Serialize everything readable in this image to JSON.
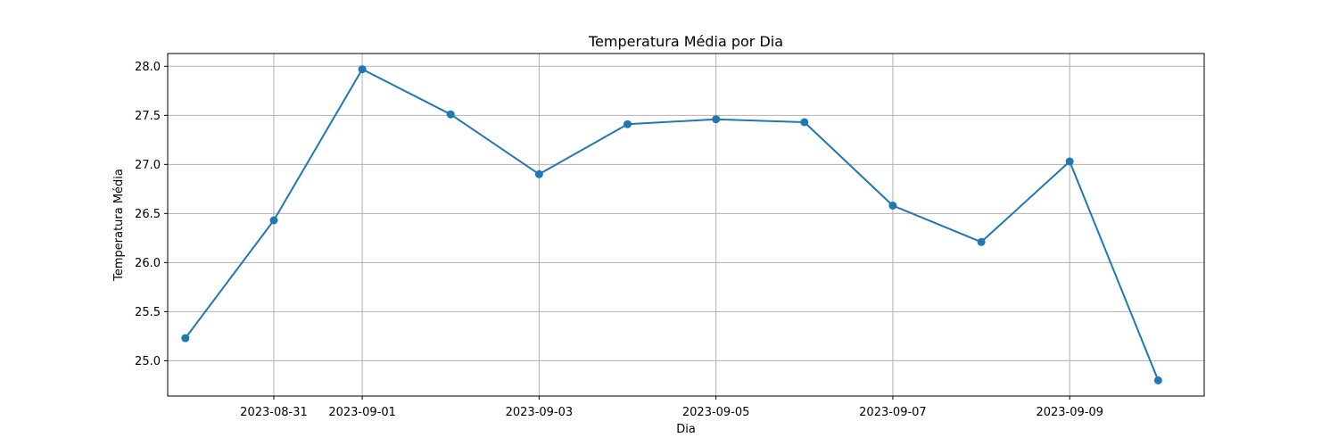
{
  "chart_data": {
    "type": "line",
    "title": "Temperatura Média por Dia",
    "xlabel": "Dia",
    "ylabel": "Temperatura Média",
    "x": [
      "2023-08-30",
      "2023-08-31",
      "2023-09-01",
      "2023-09-02",
      "2023-09-03",
      "2023-09-04",
      "2023-09-05",
      "2023-09-06",
      "2023-09-07",
      "2023-09-08",
      "2023-09-09",
      "2023-09-10"
    ],
    "series": [
      {
        "values": [
          25.23,
          26.43,
          27.97,
          27.51,
          26.9,
          27.41,
          27.46,
          27.43,
          26.58,
          26.21,
          27.03,
          24.8
        ],
        "color": "#1f77b4",
        "marker": "circle"
      }
    ],
    "xticks": [
      "2023-08-31",
      "2023-09-01",
      "2023-09-03",
      "2023-09-05",
      "2023-09-07",
      "2023-09-09"
    ],
    "yticks": [
      "25.0",
      "25.5",
      "26.0",
      "26.5",
      "27.0",
      "27.5",
      "28.0"
    ],
    "xlim": [
      "2023-08-29T19:12",
      "2023-09-10T12:30"
    ],
    "ylim": [
      24.64,
      28.13
    ],
    "grid": true
  }
}
